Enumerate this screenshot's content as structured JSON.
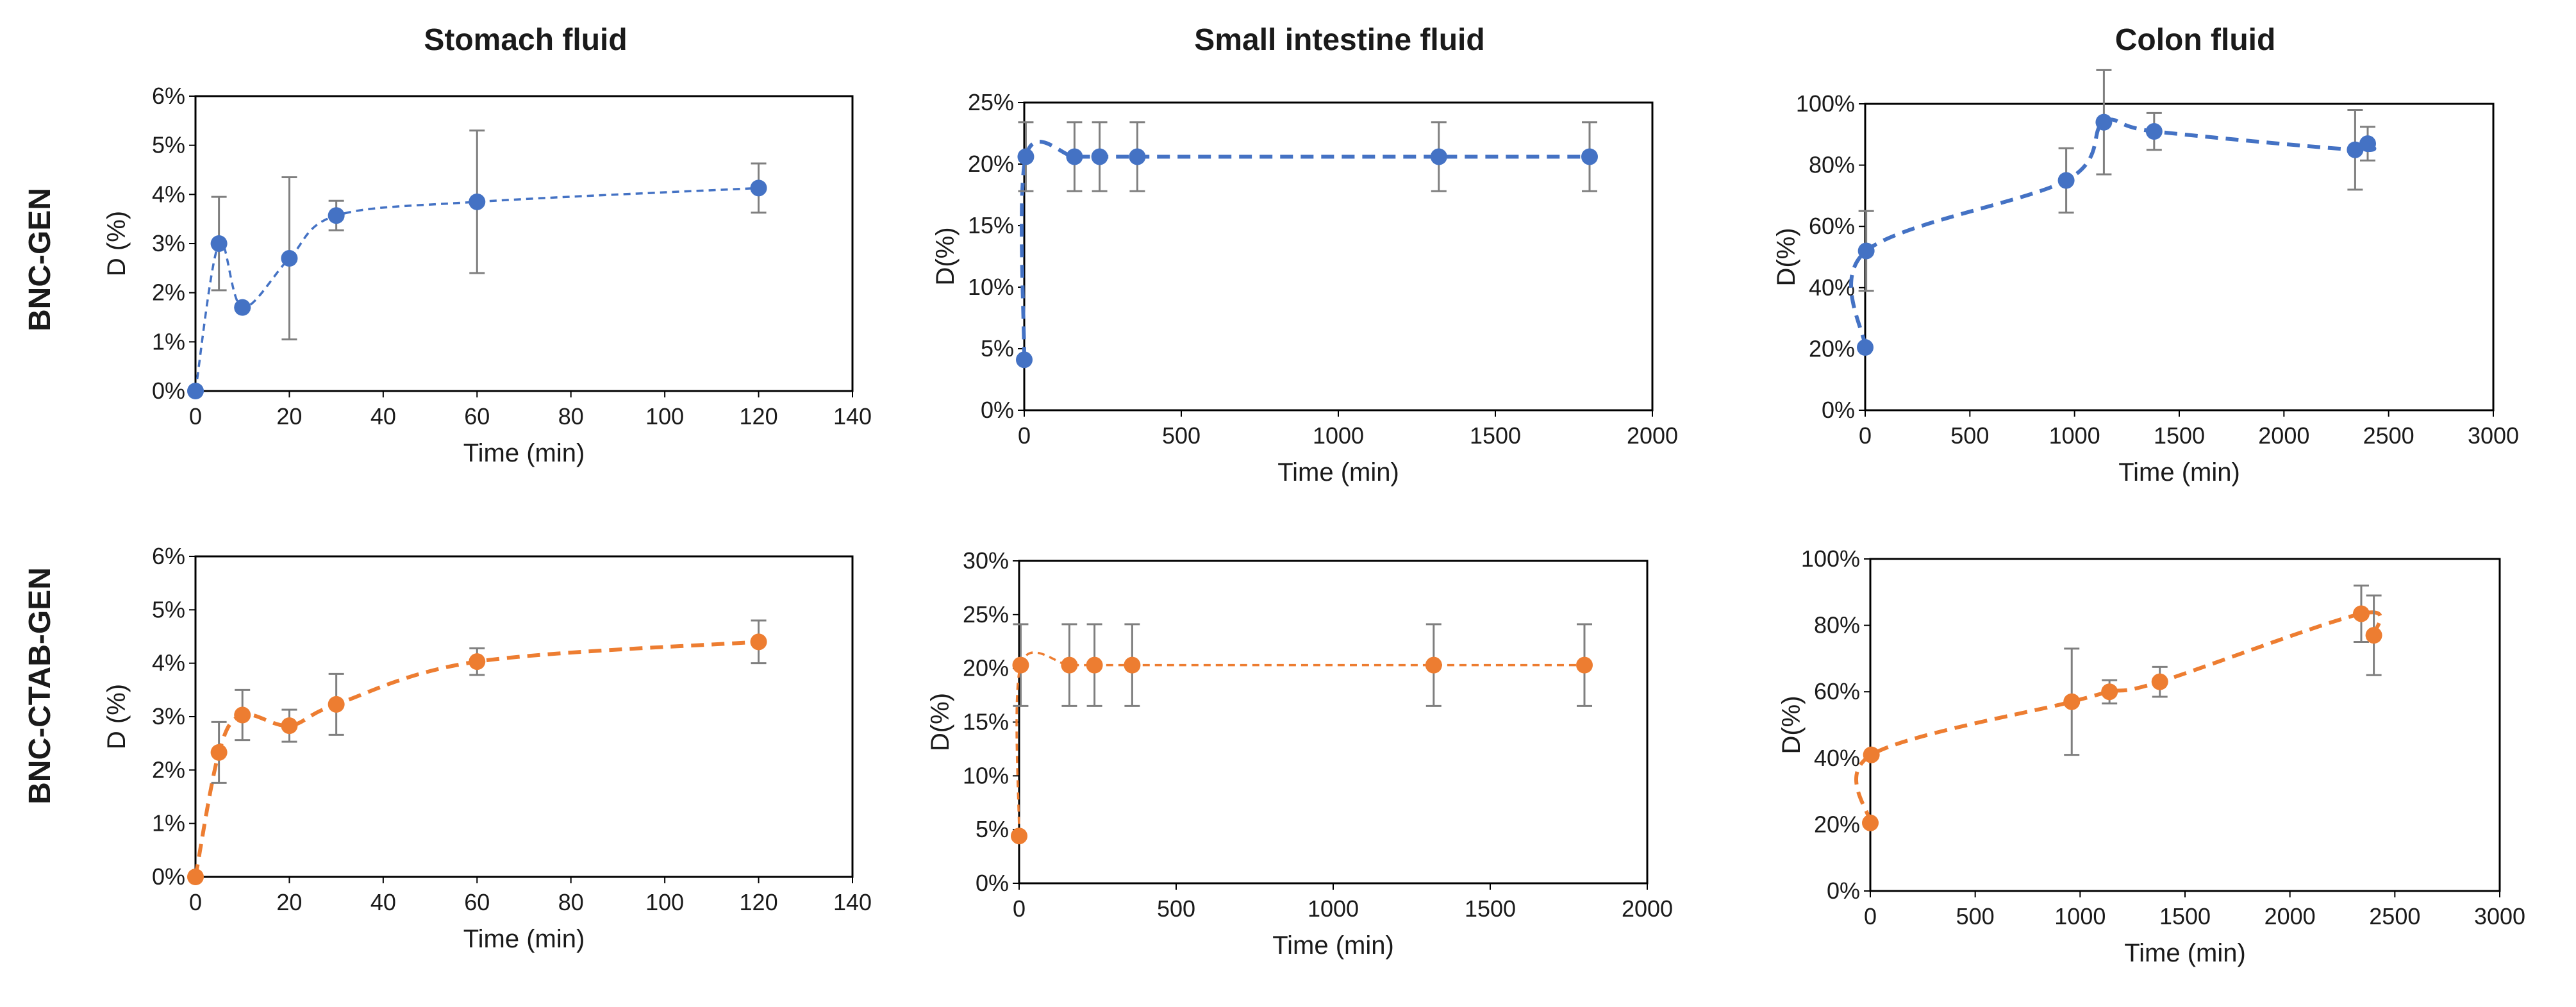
{
  "column_titles": [
    "Stomach fluid",
    "Small intestine fluid",
    "Colon fluid"
  ],
  "row_labels": [
    "BNC-GEN",
    "BNC-CTAB-GEN"
  ],
  "colors": {
    "blue": "#4472c4",
    "orange": "#ed7d31",
    "error_bar": "#7f7f7f",
    "frame": "#000000"
  },
  "chart_data": [
    {
      "id": "stomach-bnc-gen",
      "type": "scatter",
      "row": "BNC-GEN",
      "column": "Stomach fluid",
      "xlabel": "Time (min)",
      "ylabel": "D (%)",
      "xlim": [
        0,
        140
      ],
      "ylim": [
        0,
        6
      ],
      "xticks": [
        0,
        20,
        40,
        60,
        80,
        100,
        120,
        140
      ],
      "xtick_labels": [
        "0",
        "20",
        "40",
        "60",
        "80",
        "100",
        "120",
        "140"
      ],
      "yticks": [
        0,
        1,
        2,
        3,
        4,
        5,
        6
      ],
      "ytick_labels": [
        "0%",
        "1%",
        "2%",
        "3%",
        "4%",
        "5%",
        "6%"
      ],
      "color": "#4472c4",
      "line_style": "dashed",
      "line_weight": "thin",
      "series": [
        {
          "name": "BNC-GEN",
          "points": [
            {
              "x": 0,
              "y": 0,
              "err": 0
            },
            {
              "x": 5,
              "y": 3.0,
              "err": 0.95
            },
            {
              "x": 10,
              "y": 1.7,
              "err": 0.05
            },
            {
              "x": 20,
              "y": 2.7,
              "err": 1.65
            },
            {
              "x": 30,
              "y": 3.57,
              "err": 0.3
            },
            {
              "x": 60,
              "y": 3.85,
              "err": 1.45
            },
            {
              "x": 120,
              "y": 4.13,
              "err": 0.5
            }
          ]
        }
      ]
    },
    {
      "id": "intestine-bnc-gen",
      "type": "scatter",
      "row": "BNC-GEN",
      "column": "Small intestine fluid",
      "xlabel": "Time (min)",
      "ylabel": "D(%)",
      "xlim": [
        0,
        2000
      ],
      "ylim": [
        0,
        25
      ],
      "xticks": [
        0,
        500,
        1000,
        1500,
        2000
      ],
      "xtick_labels": [
        "0",
        "500",
        "1000",
        "1500",
        "2000"
      ],
      "yticks": [
        0,
        5,
        10,
        15,
        20,
        25
      ],
      "ytick_labels": [
        "0%",
        "5%",
        "10%",
        "15%",
        "20%",
        "25%"
      ],
      "color": "#4472c4",
      "line_style": "dashed",
      "line_weight": "thick",
      "series": [
        {
          "name": "BNC-GEN",
          "points": [
            {
              "x": 0,
              "y": 4.1,
              "err": 0
            },
            {
              "x": 5,
              "y": 20.6,
              "err": 2.8
            },
            {
              "x": 160,
              "y": 20.6,
              "err": 2.8
            },
            {
              "x": 240,
              "y": 20.6,
              "err": 2.8
            },
            {
              "x": 360,
              "y": 20.6,
              "err": 2.8
            },
            {
              "x": 1320,
              "y": 20.6,
              "err": 2.8
            },
            {
              "x": 1800,
              "y": 20.6,
              "err": 2.8
            }
          ]
        }
      ]
    },
    {
      "id": "colon-bnc-gen",
      "type": "scatter",
      "row": "BNC-GEN",
      "column": "Colon fluid",
      "xlabel": "Time (min)",
      "ylabel": "D(%)",
      "xlim": [
        0,
        3000
      ],
      "ylim": [
        0,
        100
      ],
      "xticks": [
        0,
        500,
        1000,
        1500,
        2000,
        2500,
        3000
      ],
      "xtick_labels": [
        "0",
        "500",
        "1000",
        "1500",
        "2000",
        "2500",
        "3000"
      ],
      "yticks": [
        0,
        20,
        40,
        60,
        80,
        100
      ],
      "ytick_labels": [
        "0%",
        "20%",
        "40%",
        "60%",
        "80%",
        "100%"
      ],
      "color": "#4472c4",
      "line_style": "dashed",
      "line_weight": "thick",
      "series": [
        {
          "name": "BNC-GEN",
          "points": [
            {
              "x": 0,
              "y": 20.5,
              "err": 0
            },
            {
              "x": 5,
              "y": 52,
              "err": 13
            },
            {
              "x": 960,
              "y": 75,
              "err": 10.5
            },
            {
              "x": 1140,
              "y": 94,
              "err": 17
            },
            {
              "x": 1380,
              "y": 91,
              "err": 6
            },
            {
              "x": 2340,
              "y": 85,
              "err": 13
            },
            {
              "x": 2400,
              "y": 87,
              "err": 5.5
            }
          ]
        }
      ]
    },
    {
      "id": "stomach-bnc-ctab-gen",
      "type": "scatter",
      "row": "BNC-CTAB-GEN",
      "column": "Stomach fluid",
      "xlabel": "Time (min)",
      "ylabel": "D (%)",
      "xlim": [
        0,
        140
      ],
      "ylim": [
        0,
        6
      ],
      "xticks": [
        0,
        20,
        40,
        60,
        80,
        100,
        120,
        140
      ],
      "xtick_labels": [
        "0",
        "20",
        "40",
        "60",
        "80",
        "100",
        "120",
        "140"
      ],
      "yticks": [
        0,
        1,
        2,
        3,
        4,
        5,
        6
      ],
      "ytick_labels": [
        "0%",
        "1%",
        "2%",
        "3%",
        "4%",
        "5%",
        "6%"
      ],
      "color": "#ed7d31",
      "line_style": "dashed",
      "line_weight": "thick",
      "series": [
        {
          "name": "BNC-CTAB-GEN",
          "points": [
            {
              "x": 0,
              "y": 0,
              "err": 0
            },
            {
              "x": 5,
              "y": 2.33,
              "err": 0.57
            },
            {
              "x": 10,
              "y": 3.03,
              "err": 0.47
            },
            {
              "x": 20,
              "y": 2.83,
              "err": 0.3
            },
            {
              "x": 30,
              "y": 3.23,
              "err": 0.57
            },
            {
              "x": 60,
              "y": 4.03,
              "err": 0.25
            },
            {
              "x": 120,
              "y": 4.4,
              "err": 0.4
            }
          ]
        }
      ]
    },
    {
      "id": "intestine-bnc-ctab-gen",
      "type": "scatter",
      "row": "BNC-CTAB-GEN",
      "column": "Small intestine fluid",
      "xlabel": "Time (min)",
      "ylabel": "D(%)",
      "xlim": [
        0,
        2000
      ],
      "ylim": [
        0,
        30
      ],
      "xticks": [
        0,
        500,
        1000,
        1500,
        2000
      ],
      "xtick_labels": [
        "0",
        "500",
        "1000",
        "1500",
        "2000"
      ],
      "yticks": [
        0,
        5,
        10,
        15,
        20,
        25,
        30
      ],
      "ytick_labels": [
        "0%",
        "5%",
        "10%",
        "15%",
        "20%",
        "25%",
        "30%"
      ],
      "color": "#ed7d31",
      "line_style": "dashed",
      "line_weight": "thin",
      "series": [
        {
          "name": "BNC-CTAB-GEN",
          "points": [
            {
              "x": 0,
              "y": 4.4,
              "err": 0
            },
            {
              "x": 5,
              "y": 20.3,
              "err": 3.8
            },
            {
              "x": 160,
              "y": 20.3,
              "err": 3.8
            },
            {
              "x": 240,
              "y": 20.3,
              "err": 3.8
            },
            {
              "x": 360,
              "y": 20.3,
              "err": 3.8
            },
            {
              "x": 1320,
              "y": 20.3,
              "err": 3.8
            },
            {
              "x": 1800,
              "y": 20.3,
              "err": 3.8
            }
          ]
        }
      ]
    },
    {
      "id": "colon-bnc-ctab-gen",
      "type": "scatter",
      "row": "BNC-CTAB-GEN",
      "column": "Colon fluid",
      "xlabel": "Time (min)",
      "ylabel": "D(%)",
      "xlim": [
        0,
        3000
      ],
      "ylim": [
        0,
        100
      ],
      "xticks": [
        0,
        500,
        1000,
        1500,
        2000,
        2500,
        3000
      ],
      "xtick_labels": [
        "0",
        "500",
        "1000",
        "1500",
        "2000",
        "2500",
        "3000"
      ],
      "yticks": [
        0,
        20,
        40,
        60,
        80,
        100
      ],
      "ytick_labels": [
        "0%",
        "20%",
        "40%",
        "60%",
        "80%",
        "100%"
      ],
      "color": "#ed7d31",
      "line_style": "dashed",
      "line_weight": "thick",
      "series": [
        {
          "name": "BNC-CTAB-GEN",
          "points": [
            {
              "x": 0,
              "y": 20.5,
              "err": 0
            },
            {
              "x": 5,
              "y": 41,
              "err": 0
            },
            {
              "x": 960,
              "y": 57,
              "err": 16
            },
            {
              "x": 1140,
              "y": 60,
              "err": 3.5
            },
            {
              "x": 1380,
              "y": 63,
              "err": 4.5
            },
            {
              "x": 2340,
              "y": 83.5,
              "err": 8.5
            },
            {
              "x": 2400,
              "y": 77,
              "err": 12
            }
          ]
        }
      ]
    }
  ]
}
